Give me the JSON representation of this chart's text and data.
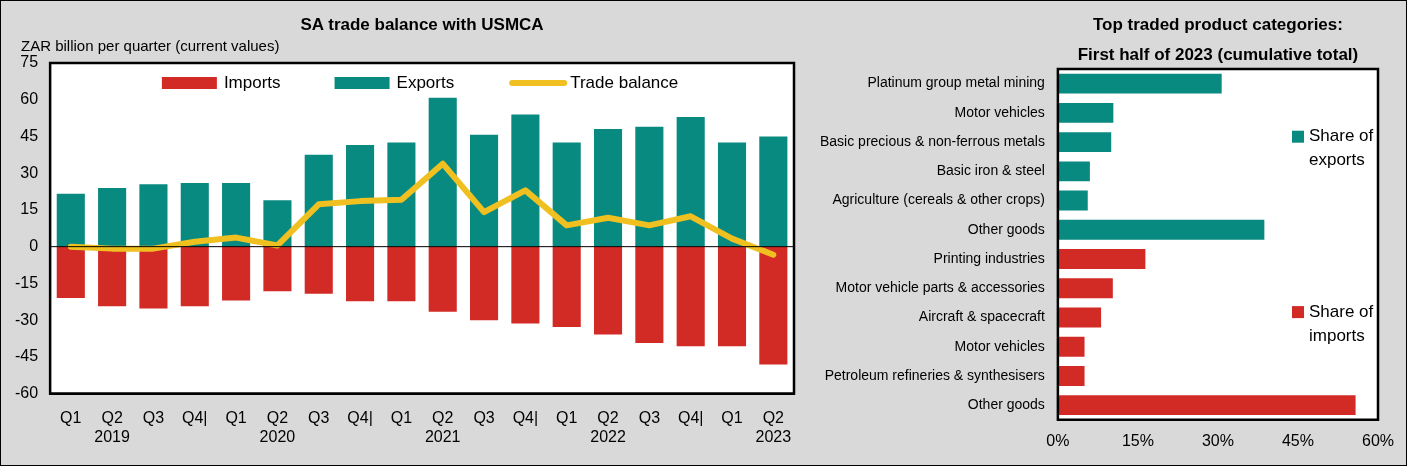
{
  "chart_data": [
    {
      "type": "bar",
      "title": "SA trade balance with USMCA",
      "ylabel": "ZAR billion per quarter (current values)",
      "stacked": true,
      "legend": "top",
      "categories": [
        "Q1",
        "Q2\n2019",
        "Q3",
        "Q4|",
        "Q1",
        "Q2\n2020",
        "Q3",
        "Q4|",
        "Q1",
        "Q2\n2021",
        "Q3",
        "Q4|",
        "Q1",
        "Q2\n2022",
        "Q3",
        "Q4|",
        "Q1",
        "Q2\n2023"
      ],
      "series": [
        {
          "name": "Imports",
          "color": "#d22b26",
          "values": [
            -21,
            -24.3,
            -25.3,
            -24.3,
            -22,
            -18.2,
            -19.2,
            -22.3,
            -22.3,
            -26.6,
            -30,
            -31.4,
            -32.8,
            -35.9,
            -39.3,
            -40.7,
            -40.7,
            -48.1
          ]
        },
        {
          "name": "Exports",
          "color": "#088a80",
          "values": [
            21.6,
            24,
            25.5,
            26,
            26,
            19,
            37.5,
            41.5,
            42.5,
            60.8,
            45.7,
            54,
            42.5,
            48,
            49,
            53,
            42.5,
            45
          ]
        },
        {
          "name": "Trade balance",
          "type": "line",
          "color": "#f0c020",
          "values": [
            0,
            -0.8,
            -0.8,
            2,
            3.7,
            0.5,
            17.3,
            18.6,
            19.2,
            33.9,
            14.1,
            23,
            8.7,
            11.8,
            8.7,
            12.4,
            3.3,
            -3.3
          ]
        }
      ],
      "ylim": [
        -60,
        75
      ],
      "yticks": [
        -60,
        -45,
        -30,
        -15,
        0,
        15,
        30,
        45,
        60,
        75
      ]
    },
    {
      "type": "bar",
      "title": "Top traded product categories:",
      "subtitle": "First half of 2023 (cumulative total)",
      "orientation": "horizontal",
      "legend": "right",
      "categories": [
        "Platinum group metal mining",
        "Motor vehicles",
        "Basic precious & non-ferrous metals",
        "Basic iron & steel",
        "Agriculture (cereals & other crops)",
        "Other goods",
        "Printing industries",
        "Motor vehicle parts & accessories",
        "Aircraft & spacecraft",
        "Motor vehicles",
        "Petroleum refineries & synthesisers",
        "Other goods"
      ],
      "series": [
        {
          "name": "Share of exports",
          "color": "#088a80",
          "values": [
            30.7,
            10.4,
            10,
            6,
            5.6,
            38.7,
            null,
            null,
            null,
            null,
            null,
            null
          ]
        },
        {
          "name": "Share of imports",
          "color": "#d22b26",
          "values": [
            null,
            null,
            null,
            null,
            null,
            null,
            16.4,
            10.3,
            8.1,
            5,
            5,
            55.8
          ]
        }
      ],
      "xlim": [
        0,
        60
      ],
      "xticks": [
        {
          "value": 0,
          "label": "0%"
        },
        {
          "value": 15,
          "label": "15%"
        },
        {
          "value": 30,
          "label": "30%"
        },
        {
          "value": 45,
          "label": "45%"
        },
        {
          "value": 60,
          "label": "60%"
        }
      ]
    }
  ]
}
